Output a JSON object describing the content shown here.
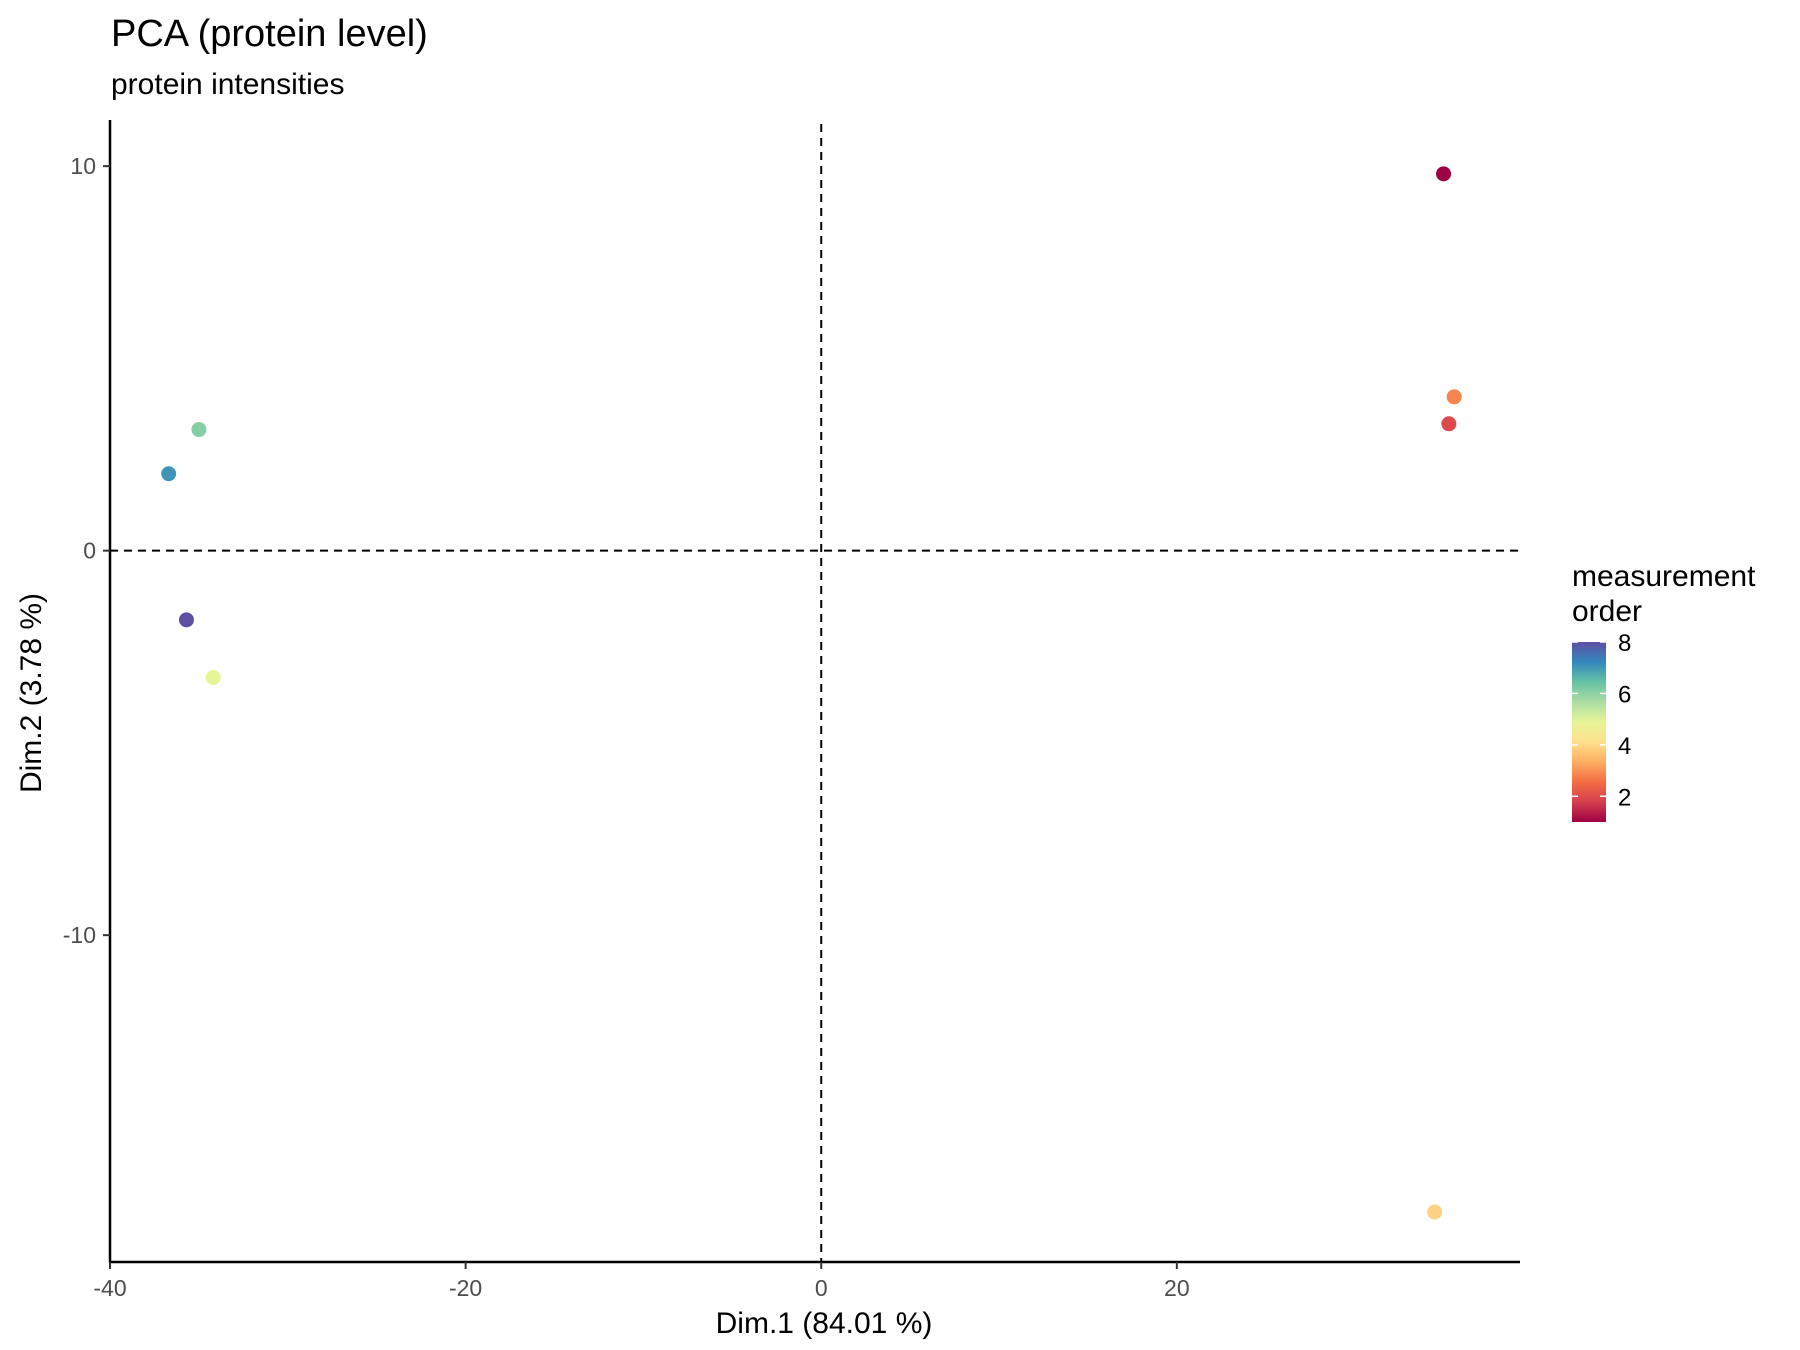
{
  "chart_data": {
    "type": "scatter",
    "title": "PCA (protein level)",
    "subtitle": "protein intensities",
    "xlabel": "Dim.1 (84.01 %)",
    "ylabel": "Dim.2 (3.78 %)",
    "xlim": [
      -40,
      39.3
    ],
    "ylim": [
      -18.5,
      11.2
    ],
    "xticks": [
      -40,
      -20,
      0,
      20
    ],
    "xtick_labels": [
      "-40",
      "-20",
      "0",
      "20"
    ],
    "yticks": [
      10,
      0,
      -10
    ],
    "ytick_labels": [
      "10",
      "0",
      "-10"
    ],
    "reference_lines": {
      "x": 0,
      "y": 0,
      "style": "dashed"
    },
    "grid": false,
    "legend": {
      "title": "measurement order",
      "position": "right",
      "type": "continuous colorbar",
      "range": [
        1,
        8
      ],
      "ticks": [
        2,
        4,
        6,
        8
      ],
      "tick_labels": [
        "2",
        "4",
        "6",
        "8"
      ],
      "palette": "Spectral",
      "colors": [
        "#9e0142",
        "#d53e4f",
        "#f46d43",
        "#fdae61",
        "#fee08b",
        "#e6f598",
        "#abdda4",
        "#66c2a5",
        "#3288bd",
        "#5e4fa2"
      ]
    },
    "points": [
      {
        "x": 35.0,
        "y": 9.8,
        "order": 1,
        "color": "#9e0142"
      },
      {
        "x": 35.3,
        "y": 3.3,
        "order": 2,
        "color": "#dc4a4c"
      },
      {
        "x": 35.6,
        "y": 4.0,
        "order": 3,
        "color": "#f7844e"
      },
      {
        "x": 34.5,
        "y": -17.2,
        "order": 4,
        "color": "#fdd283"
      },
      {
        "x": -34.2,
        "y": -3.3,
        "order": 5,
        "color": "#e6f598"
      },
      {
        "x": -35.0,
        "y": 3.15,
        "order": 6,
        "color": "#86cfa5"
      },
      {
        "x": -36.7,
        "y": 2.0,
        "order": 7,
        "color": "#3d95b8"
      },
      {
        "x": -35.7,
        "y": -1.8,
        "order": 8,
        "color": "#5e4fa2"
      }
    ]
  }
}
